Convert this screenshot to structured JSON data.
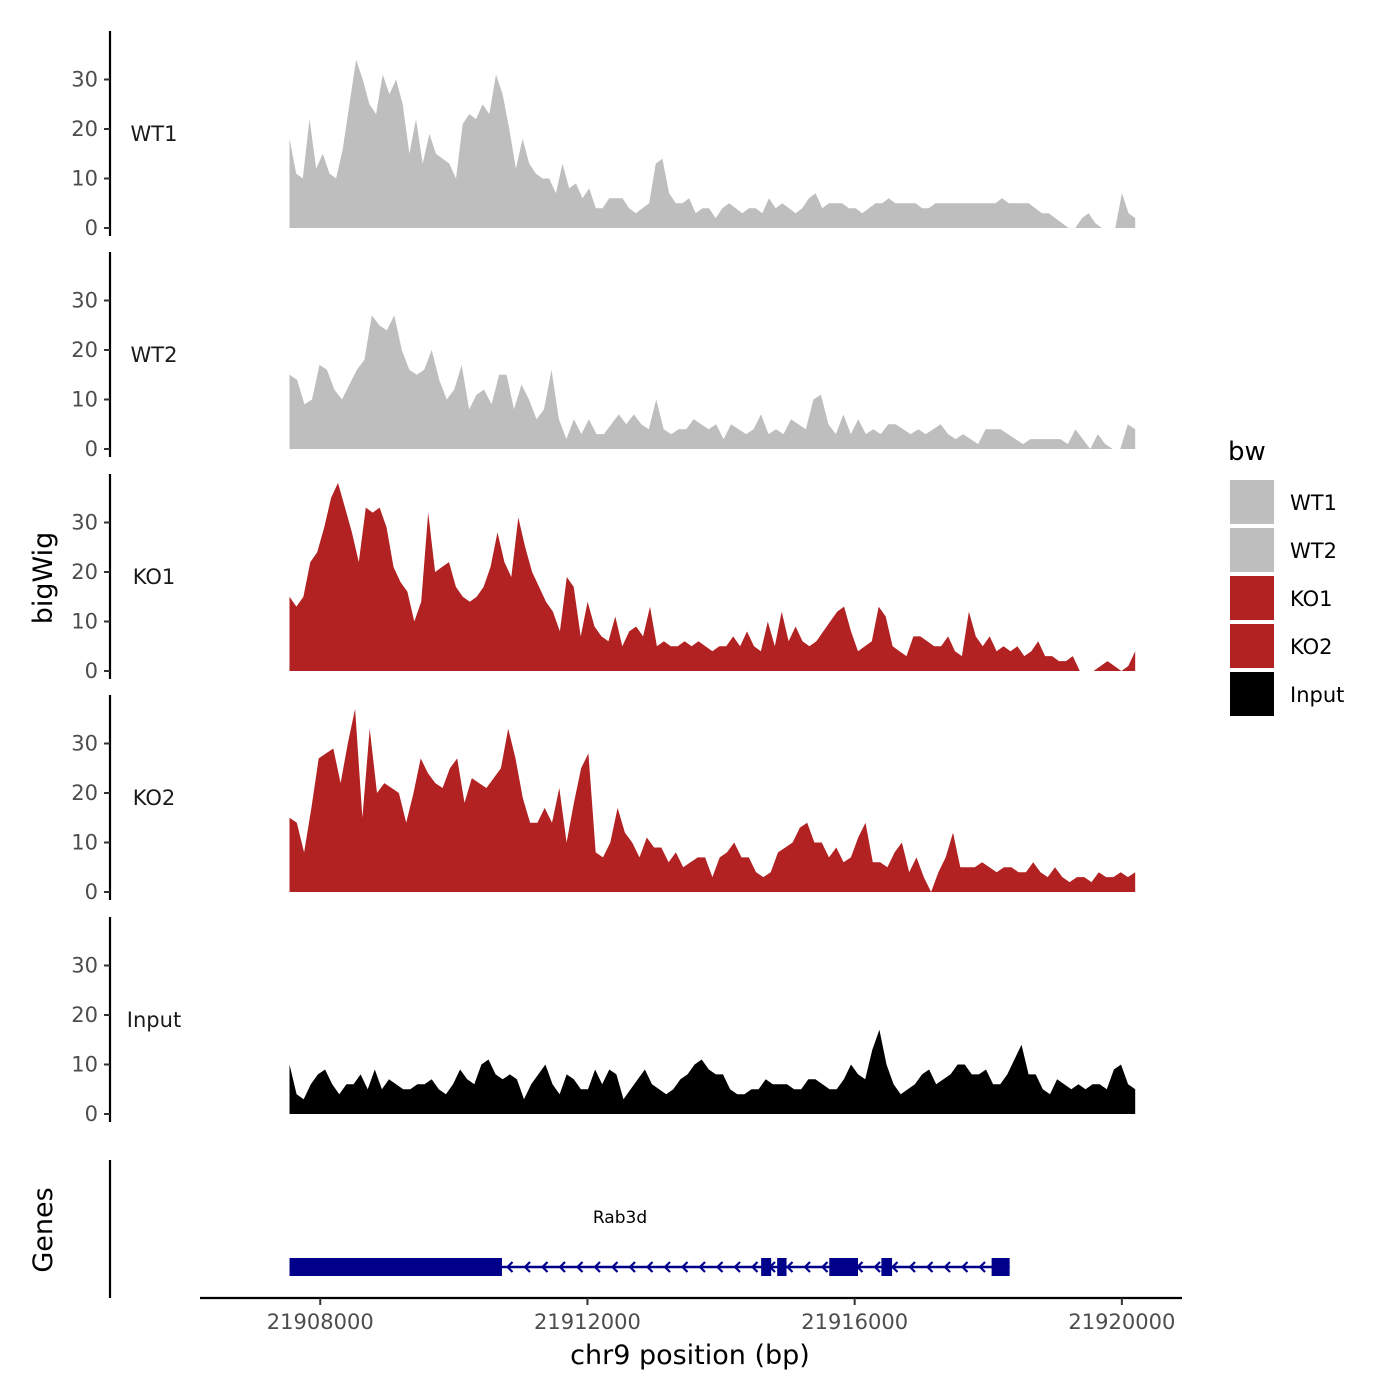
{
  "chart_data": {
    "type": "area",
    "layout": "stacked coverage tracks with shared x axis",
    "xlabel": "chr9 position (bp)",
    "ylabel": "bigWig",
    "genes_label": "Genes",
    "xlim": [
      21906200,
      21920900
    ],
    "x_ticks": [
      21908000,
      21912000,
      21916000,
      21920000
    ],
    "x_tick_labels": [
      "21908000",
      "21912000",
      "21916000",
      "21920000"
    ],
    "ylim": [
      0,
      40
    ],
    "y_ticks": [
      0,
      10,
      20,
      30
    ],
    "y_tick_labels": [
      "0",
      "10",
      "20",
      "30"
    ],
    "legend": {
      "title": "bw",
      "position": "right",
      "entries": [
        {
          "label": "WT1",
          "color": "#bebebe"
        },
        {
          "label": "WT2",
          "color": "#bebebe"
        },
        {
          "label": "KO1",
          "color": "#b22222"
        },
        {
          "label": "KO2",
          "color": "#b22222"
        },
        {
          "label": "Input",
          "color": "#000000"
        }
      ]
    },
    "tracks": [
      {
        "name": "WT1",
        "color": "#bebebe",
        "x_start": 21907540,
        "x_end": 21920200,
        "values": [
          18,
          11,
          10,
          22,
          12,
          15,
          11,
          10,
          16,
          25,
          34,
          30,
          25,
          23,
          31,
          27,
          30,
          25,
          15,
          22,
          13,
          19,
          15,
          14,
          13,
          10,
          21,
          23,
          22,
          25,
          23,
          31,
          27,
          20,
          12,
          18,
          13,
          11,
          10,
          10,
          7,
          13,
          8,
          9,
          6,
          8,
          4,
          4,
          6,
          6,
          6,
          4,
          3,
          4,
          5,
          13,
          14,
          7,
          5,
          5,
          6,
          3,
          4,
          4,
          2,
          4,
          5,
          4,
          3,
          4,
          4,
          3,
          6,
          4,
          5,
          4,
          3,
          4,
          6,
          7,
          4,
          5,
          5,
          5,
          4,
          4,
          3,
          4,
          5,
          5,
          6,
          5,
          5,
          5,
          5,
          4,
          4,
          5,
          5,
          5,
          5,
          5,
          5,
          5,
          5,
          5,
          5,
          6,
          5,
          5,
          5,
          5,
          4,
          3,
          3,
          2,
          1,
          0,
          0,
          2,
          3,
          1,
          0,
          0,
          0,
          7,
          3,
          2
        ]
      },
      {
        "name": "WT2",
        "color": "#bebebe",
        "x_start": 21907540,
        "x_end": 21920200,
        "values": [
          15,
          14,
          9,
          10,
          17,
          16,
          12,
          10,
          13,
          16,
          18,
          27,
          25,
          24,
          27,
          20,
          16,
          15,
          16,
          20,
          14,
          10,
          12,
          17,
          8,
          11,
          12,
          9,
          15,
          15,
          8,
          13,
          10,
          6,
          8,
          16,
          6,
          2,
          6,
          3,
          6,
          3,
          3,
          5,
          7,
          5,
          7,
          5,
          4,
          10,
          4,
          3,
          4,
          4,
          6,
          5,
          4,
          5,
          2,
          5,
          4,
          3,
          4,
          7,
          3,
          4,
          3,
          6,
          5,
          4,
          10,
          11,
          5,
          3,
          7,
          3,
          6,
          3,
          4,
          3,
          5,
          5,
          4,
          3,
          4,
          3,
          4,
          5,
          3,
          2,
          3,
          2,
          1,
          4,
          4,
          4,
          3,
          2,
          1,
          2,
          2,
          2,
          2,
          2,
          1,
          4,
          2,
          0,
          3,
          1,
          0,
          0,
          5,
          4
        ]
      },
      {
        "name": "KO1",
        "color": "#b22222",
        "x_start": 21907540,
        "x_end": 21920200,
        "values": [
          15,
          13,
          15,
          22,
          24,
          29,
          35,
          38,
          33,
          28,
          22,
          33,
          32,
          33,
          29,
          21,
          18,
          16,
          10,
          14,
          32,
          20,
          21,
          22,
          17,
          15,
          14,
          15,
          17,
          21,
          28,
          22,
          19,
          31,
          25,
          20,
          17,
          14,
          12,
          8,
          19,
          17,
          7,
          14,
          9,
          7,
          6,
          11,
          5,
          8,
          9,
          7,
          13,
          5,
          6,
          5,
          5,
          6,
          5,
          6,
          5,
          4,
          5,
          5,
          7,
          5,
          8,
          5,
          4,
          10,
          5,
          12,
          6,
          9,
          6,
          5,
          6,
          8,
          10,
          12,
          13,
          8,
          4,
          5,
          6,
          13,
          11,
          5,
          4,
          3,
          7,
          7,
          6,
          5,
          5,
          7,
          4,
          3,
          12,
          7,
          5,
          7,
          4,
          5,
          4,
          5,
          3,
          4,
          6,
          3,
          3,
          2,
          2,
          3,
          0,
          0,
          0,
          1,
          2,
          1,
          0,
          1,
          4
        ]
      },
      {
        "name": "KO2",
        "color": "#b22222",
        "x_start": 21907540,
        "x_end": 21920200,
        "values": [
          15,
          14,
          8,
          17,
          27,
          28,
          29,
          22,
          30,
          37,
          15,
          33,
          20,
          22,
          21,
          20,
          14,
          20,
          27,
          24,
          22,
          21,
          25,
          27,
          18,
          23,
          22,
          21,
          23,
          25,
          33,
          27,
          19,
          14,
          14,
          17,
          14,
          21,
          10,
          18,
          25,
          28,
          8,
          7,
          10,
          17,
          12,
          10,
          7,
          11,
          9,
          9,
          6,
          8,
          5,
          6,
          7,
          7,
          3,
          7,
          8,
          10,
          7,
          7,
          4,
          3,
          4,
          8,
          9,
          10,
          13,
          14,
          10,
          10,
          7,
          9,
          6,
          7,
          11,
          14,
          6,
          6,
          5,
          8,
          10,
          4,
          7,
          3,
          0,
          4,
          7,
          12,
          5,
          5,
          5,
          6,
          5,
          4,
          5,
          5,
          4,
          4,
          6,
          4,
          3,
          5,
          3,
          2,
          3,
          3,
          2,
          4,
          3,
          3,
          4,
          3,
          4
        ]
      },
      {
        "name": "Input",
        "color": "#000000",
        "x_start": 21907540,
        "x_end": 21920200,
        "values": [
          10,
          4,
          3,
          6,
          8,
          9,
          6,
          4,
          6,
          6,
          8,
          5,
          9,
          5,
          7,
          6,
          5,
          5,
          6,
          6,
          7,
          5,
          4,
          6,
          9,
          7,
          6,
          10,
          11,
          8,
          7,
          8,
          7,
          3,
          6,
          8,
          10,
          6,
          4,
          8,
          7,
          5,
          5,
          9,
          6,
          9,
          8,
          3,
          5,
          7,
          9,
          6,
          5,
          4,
          5,
          7,
          8,
          10,
          11,
          9,
          8,
          8,
          5,
          4,
          4,
          5,
          5,
          7,
          6,
          6,
          6,
          5,
          5,
          7,
          7,
          6,
          5,
          5,
          7,
          10,
          8,
          7,
          13,
          17,
          10,
          6,
          4,
          5,
          6,
          8,
          9,
          6,
          7,
          8,
          10,
          10,
          8,
          8,
          9,
          6,
          6,
          8,
          11,
          14,
          8,
          8,
          5,
          4,
          7,
          6,
          5,
          6,
          5,
          6,
          6,
          5,
          9,
          10,
          6,
          5
        ]
      }
    ],
    "gene": {
      "name": "Rab3d",
      "strand": "-",
      "color": "#00008b",
      "tx_start": 21907540,
      "tx_end": 21918320,
      "exons": [
        [
          21907540,
          21910720
        ],
        [
          21914600,
          21914750
        ],
        [
          21914840,
          21914980
        ],
        [
          21915620,
          21916050
        ],
        [
          21916400,
          21916560
        ],
        [
          21918050,
          21918320
        ]
      ]
    }
  }
}
